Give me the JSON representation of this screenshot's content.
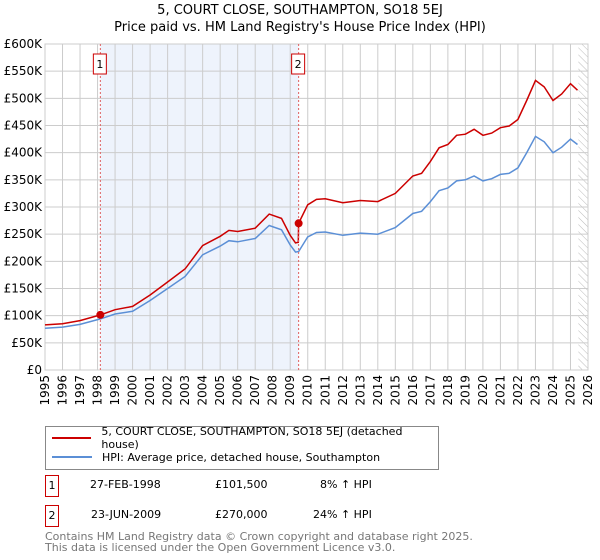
{
  "title_line1": "5, COURT CLOSE, SOUTHAMPTON, SO18 5EJ",
  "title_line2": "Price paid vs. HM Land Registry's House Price Index (HPI)",
  "colors": {
    "property": "#cc0000",
    "hpi": "#5b8fd6",
    "shade": "#eef3fc",
    "grid": "#cccccc"
  },
  "chart_data": {
    "type": "line",
    "title": "Price paid vs. HM Land Registry's House Price Index (HPI)",
    "xlim": [
      1995,
      2026
    ],
    "ylim": [
      0,
      600000
    ],
    "x_ticks": [
      "1995",
      "1996",
      "1997",
      "1998",
      "1999",
      "2000",
      "2001",
      "2002",
      "2003",
      "2004",
      "2005",
      "2006",
      "2007",
      "2008",
      "2009",
      "2010",
      "2011",
      "2012",
      "2013",
      "2014",
      "2015",
      "2016",
      "2017",
      "2018",
      "2019",
      "2020",
      "2021",
      "2022",
      "2023",
      "2024",
      "2025",
      "2026"
    ],
    "y_ticks": [
      {
        "v": 0,
        "label": "£0"
      },
      {
        "v": 50000,
        "label": "£50K"
      },
      {
        "v": 100000,
        "label": "£100K"
      },
      {
        "v": 150000,
        "label": "£150K"
      },
      {
        "v": 200000,
        "label": "£200K"
      },
      {
        "v": 250000,
        "label": "£250K"
      },
      {
        "v": 300000,
        "label": "£300K"
      },
      {
        "v": 350000,
        "label": "£350K"
      },
      {
        "v": 400000,
        "label": "£400K"
      },
      {
        "v": 450000,
        "label": "£450K"
      },
      {
        "v": 500000,
        "label": "£500K"
      },
      {
        "v": 550000,
        "label": "£550K"
      },
      {
        "v": 600000,
        "label": "£600K"
      }
    ],
    "grid": true,
    "shaded_range": [
      1998.16,
      2009.48
    ],
    "hatched_from": 2025.45,
    "series": [
      {
        "name": "5, COURT CLOSE, SOUTHAMPTON, SO18 5EJ (detached house)",
        "color": "#cc0000",
        "x": [
          1995.0,
          1996.0,
          1997.0,
          1998.16,
          1999.0,
          2000.0,
          2001.0,
          2002.0,
          2003.0,
          2004.0,
          2005.0,
          2005.5,
          2006.0,
          2007.0,
          2007.8,
          2008.5,
          2009.0,
          2009.3,
          2009.46,
          2009.48,
          2010.0,
          2010.5,
          2011.0,
          2012.0,
          2013.0,
          2014.0,
          2015.0,
          2016.0,
          2016.5,
          2017.0,
          2017.5,
          2018.0,
          2018.5,
          2019.0,
          2019.5,
          2020.0,
          2020.5,
          2021.0,
          2021.5,
          2022.0,
          2022.5,
          2023.0,
          2023.5,
          2024.0,
          2024.5,
          2025.0,
          2025.4
        ],
        "y": [
          83000,
          85000,
          91000,
          101500,
          111000,
          117000,
          138000,
          162000,
          186000,
          229000,
          246000,
          257000,
          255000,
          261000,
          287000,
          279000,
          248000,
          234000,
          235000,
          270000,
          304000,
          314000,
          315000,
          308000,
          312000,
          310000,
          325000,
          357000,
          362000,
          384000,
          409000,
          415000,
          432000,
          434000,
          443000,
          432000,
          436000,
          446000,
          449000,
          461000,
          496000,
          533000,
          521000,
          496000,
          508000,
          527000,
          515000
        ]
      },
      {
        "name": "HPI: Average price, detached house, Southampton",
        "color": "#5b8fd6",
        "x": [
          1995.0,
          1996.0,
          1997.0,
          1998.16,
          1999.0,
          2000.0,
          2001.0,
          2002.0,
          2003.0,
          2004.0,
          2005.0,
          2005.5,
          2006.0,
          2007.0,
          2007.8,
          2008.5,
          2009.0,
          2009.3,
          2009.46,
          2009.48,
          2010.0,
          2010.5,
          2011.0,
          2012.0,
          2013.0,
          2014.0,
          2015.0,
          2016.0,
          2016.5,
          2017.0,
          2017.5,
          2018.0,
          2018.5,
          2019.0,
          2019.5,
          2020.0,
          2020.5,
          2021.0,
          2021.5,
          2022.0,
          2022.5,
          2023.0,
          2023.5,
          2024.0,
          2024.5,
          2025.0,
          2025.4
        ],
        "y": [
          77000,
          79000,
          84000,
          94000,
          103000,
          108000,
          128000,
          150000,
          172000,
          212000,
          228000,
          238000,
          236000,
          242000,
          266000,
          258000,
          230000,
          217000,
          218000,
          218000,
          245000,
          253000,
          254000,
          248000,
          252000,
          250000,
          262000,
          288000,
          292000,
          310000,
          330000,
          335000,
          348000,
          350000,
          357000,
          348000,
          352000,
          360000,
          362000,
          372000,
          400000,
          430000,
          420000,
          400000,
          410000,
          425000,
          415000
        ]
      }
    ],
    "annotations": [
      {
        "label": "1",
        "x": 1998.16,
        "y": 101500
      },
      {
        "label": "2",
        "x": 2009.48,
        "y": 270000
      }
    ]
  },
  "legend": {
    "property": "5, COURT CLOSE, SOUTHAMPTON, SO18 5EJ (detached house)",
    "hpi": "HPI: Average price, detached house, Southampton"
  },
  "transactions": [
    {
      "num": "1",
      "date": "27-FEB-1998",
      "price": "£101,500",
      "hpi": "8% ↑ HPI"
    },
    {
      "num": "2",
      "date": "23-JUN-2009",
      "price": "£270,000",
      "hpi": "24% ↑ HPI"
    }
  ],
  "footer": {
    "line1": "Contains HM Land Registry data © Crown copyright and database right 2025.",
    "line2": "This data is licensed under the Open Government Licence v3.0."
  }
}
